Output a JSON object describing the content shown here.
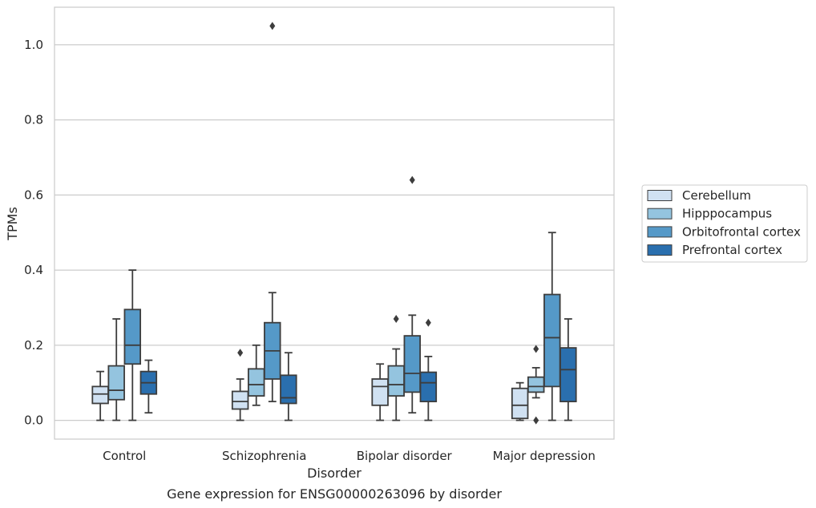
{
  "chart_data": {
    "type": "box",
    "xlabel": "Disorder",
    "ylabel": "TPMs",
    "caption": "Gene expression for ENSG00000263096 by disorder",
    "ylim": [
      -0.05,
      1.1
    ],
    "yticks": [
      0.0,
      0.2,
      0.4,
      0.6,
      0.8,
      1.0
    ],
    "ytick_labels": [
      "0.0",
      "0.2",
      "0.4",
      "0.6",
      "0.8",
      "1.0"
    ],
    "grid": "horizontal",
    "legend_position": "right",
    "categories": [
      "Control",
      "Schizophrenia",
      "Bipolar disorder",
      "Major depression"
    ],
    "series": [
      {
        "name": "Cerebellum",
        "color": "#d0e1f2",
        "boxes": [
          {
            "whisker_low": 0.0,
            "q1": 0.045,
            "median": 0.07,
            "q3": 0.09,
            "whisker_high": 0.13,
            "outliers": []
          },
          {
            "whisker_low": 0.0,
            "q1": 0.03,
            "median": 0.05,
            "q3": 0.077,
            "whisker_high": 0.11,
            "outliers": [
              0.18
            ]
          },
          {
            "whisker_low": 0.0,
            "q1": 0.04,
            "median": 0.09,
            "q3": 0.11,
            "whisker_high": 0.15,
            "outliers": []
          },
          {
            "whisker_low": 0.0,
            "q1": 0.005,
            "median": 0.04,
            "q3": 0.085,
            "whisker_high": 0.1,
            "outliers": []
          }
        ]
      },
      {
        "name": "Hipppocampus",
        "color": "#94c4df",
        "boxes": [
          {
            "whisker_low": 0.0,
            "q1": 0.055,
            "median": 0.08,
            "q3": 0.145,
            "whisker_high": 0.27,
            "outliers": []
          },
          {
            "whisker_low": 0.04,
            "q1": 0.065,
            "median": 0.095,
            "q3": 0.137,
            "whisker_high": 0.2,
            "outliers": []
          },
          {
            "whisker_low": 0.0,
            "q1": 0.065,
            "median": 0.095,
            "q3": 0.145,
            "whisker_high": 0.19,
            "outliers": [
              0.27
            ]
          },
          {
            "whisker_low": 0.06,
            "q1": 0.075,
            "median": 0.09,
            "q3": 0.115,
            "whisker_high": 0.14,
            "outliers": [
              0.19,
              0.0
            ]
          }
        ]
      },
      {
        "name": "Orbitofrontal cortex",
        "color": "#5599c8",
        "boxes": [
          {
            "whisker_low": 0.0,
            "q1": 0.15,
            "median": 0.2,
            "q3": 0.295,
            "whisker_high": 0.4,
            "outliers": []
          },
          {
            "whisker_low": 0.05,
            "q1": 0.11,
            "median": 0.185,
            "q3": 0.26,
            "whisker_high": 0.34,
            "outliers": [
              1.05
            ]
          },
          {
            "whisker_low": 0.02,
            "q1": 0.075,
            "median": 0.125,
            "q3": 0.225,
            "whisker_high": 0.28,
            "outliers": [
              0.64
            ]
          },
          {
            "whisker_low": 0.0,
            "q1": 0.09,
            "median": 0.22,
            "q3": 0.335,
            "whisker_high": 0.5,
            "outliers": []
          }
        ]
      },
      {
        "name": "Prefrontal cortex",
        "color": "#2a6fae",
        "boxes": [
          {
            "whisker_low": 0.02,
            "q1": 0.07,
            "median": 0.1,
            "q3": 0.13,
            "whisker_high": 0.16,
            "outliers": []
          },
          {
            "whisker_low": 0.0,
            "q1": 0.045,
            "median": 0.06,
            "q3": 0.12,
            "whisker_high": 0.18,
            "outliers": []
          },
          {
            "whisker_low": 0.0,
            "q1": 0.05,
            "median": 0.1,
            "q3": 0.128,
            "whisker_high": 0.17,
            "outliers": [
              0.26
            ]
          },
          {
            "whisker_low": 0.0,
            "q1": 0.05,
            "median": 0.135,
            "q3": 0.193,
            "whisker_high": 0.27,
            "outliers": []
          }
        ]
      }
    ]
  }
}
